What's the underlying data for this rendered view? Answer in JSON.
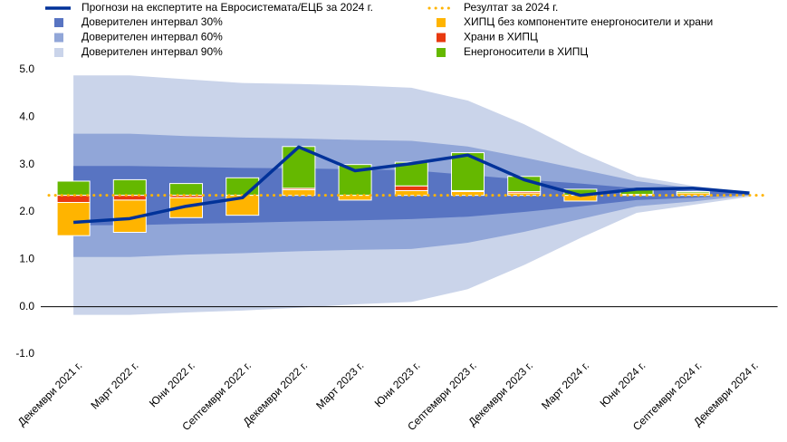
{
  "chart_data": {
    "type": "fan",
    "categories": [
      "Декември 2021 г.",
      "Март 2022 г.",
      "Юни 2022 г.",
      "Септември 2022 г.",
      "Декември 2022 г.",
      "Март 2023 г.",
      "Юни 2023 г.",
      "Септември 2023 г.",
      "Декември 2023 г.",
      "Март 2024 г.",
      "Юни 2024 г.",
      "Септември 2024 г.",
      "Декември 2024 г."
    ],
    "ylim": [
      -1,
      5
    ],
    "yticks": [
      {
        "value": 5,
        "label": "5.0"
      },
      {
        "value": 4,
        "label": "4.0"
      },
      {
        "value": 3,
        "label": "3.0"
      },
      {
        "value": 2,
        "label": "2.0"
      },
      {
        "value": 1,
        "label": "1.0"
      },
      {
        "value": 0,
        "label": "0.0"
      },
      {
        "value": -1,
        "label": "-1.0"
      }
    ],
    "projection": {
      "name": "Прогнози на експертите на Евросистемата/ЕЦБ за 2024 г.",
      "color": "#003299",
      "values": [
        1.78,
        1.86,
        2.12,
        2.3,
        3.37,
        2.87,
        3.02,
        3.2,
        2.68,
        2.35,
        2.48,
        2.5,
        2.4
      ]
    },
    "bands": [
      {
        "name": "Доверителен интервал 30%",
        "color": "#5874c2",
        "upper": [
          2.97,
          2.97,
          2.95,
          2.93,
          2.92,
          2.9,
          2.88,
          2.78,
          2.68,
          2.6,
          2.5,
          2.45,
          2.39
        ],
        "lower": [
          1.72,
          1.72,
          1.75,
          1.77,
          1.8,
          1.82,
          1.85,
          1.9,
          2.0,
          2.12,
          2.25,
          2.3,
          2.36
        ]
      },
      {
        "name": "Доверителен интервал 60%",
        "color": "#91a6d8",
        "upper": [
          3.65,
          3.65,
          3.6,
          3.57,
          3.55,
          3.52,
          3.5,
          3.38,
          3.15,
          2.9,
          2.65,
          2.5,
          2.4
        ],
        "lower": [
          1.05,
          1.05,
          1.1,
          1.13,
          1.17,
          1.2,
          1.22,
          1.35,
          1.58,
          1.85,
          2.12,
          2.22,
          2.35
        ]
      },
      {
        "name": "Доверителен интервал 90%",
        "color": "#cad4ea",
        "upper": [
          4.88,
          4.88,
          4.8,
          4.72,
          4.7,
          4.67,
          4.62,
          4.35,
          3.85,
          3.25,
          2.75,
          2.55,
          2.42
        ],
        "lower": [
          -0.17,
          -0.17,
          -0.12,
          -0.08,
          -0.02,
          0.05,
          0.1,
          0.37,
          0.88,
          1.45,
          1.98,
          2.15,
          2.32
        ]
      }
    ],
    "outcome": {
      "name": "Резултат за 2024 г.",
      "color": "#ffb400",
      "value": 2.35
    },
    "series": [
      {
        "name": "ХИПЦ без компонентите енергоносители и храни",
        "color": "#ffb400",
        "values": [
          -0.7,
          -0.68,
          -0.42,
          -0.42,
          0.12,
          -0.1,
          0.1,
          0.08,
          0.05,
          -0.12,
          0.02,
          0.05,
          0
        ]
      },
      {
        "name": "Храни  в ХИПЦ",
        "color": "#e8390f",
        "values": [
          -0.15,
          -0.1,
          -0.05,
          0,
          0.03,
          0,
          0.1,
          0.02,
          0.03,
          0,
          0,
          0,
          0
        ]
      },
      {
        "name": "Енергоносители в ХИПЦ",
        "color": "#65b800",
        "values": [
          0.3,
          0.33,
          0.25,
          0.37,
          0.88,
          0.65,
          0.5,
          0.8,
          0.32,
          0.13,
          0.1,
          0.03,
          0
        ]
      }
    ]
  }
}
